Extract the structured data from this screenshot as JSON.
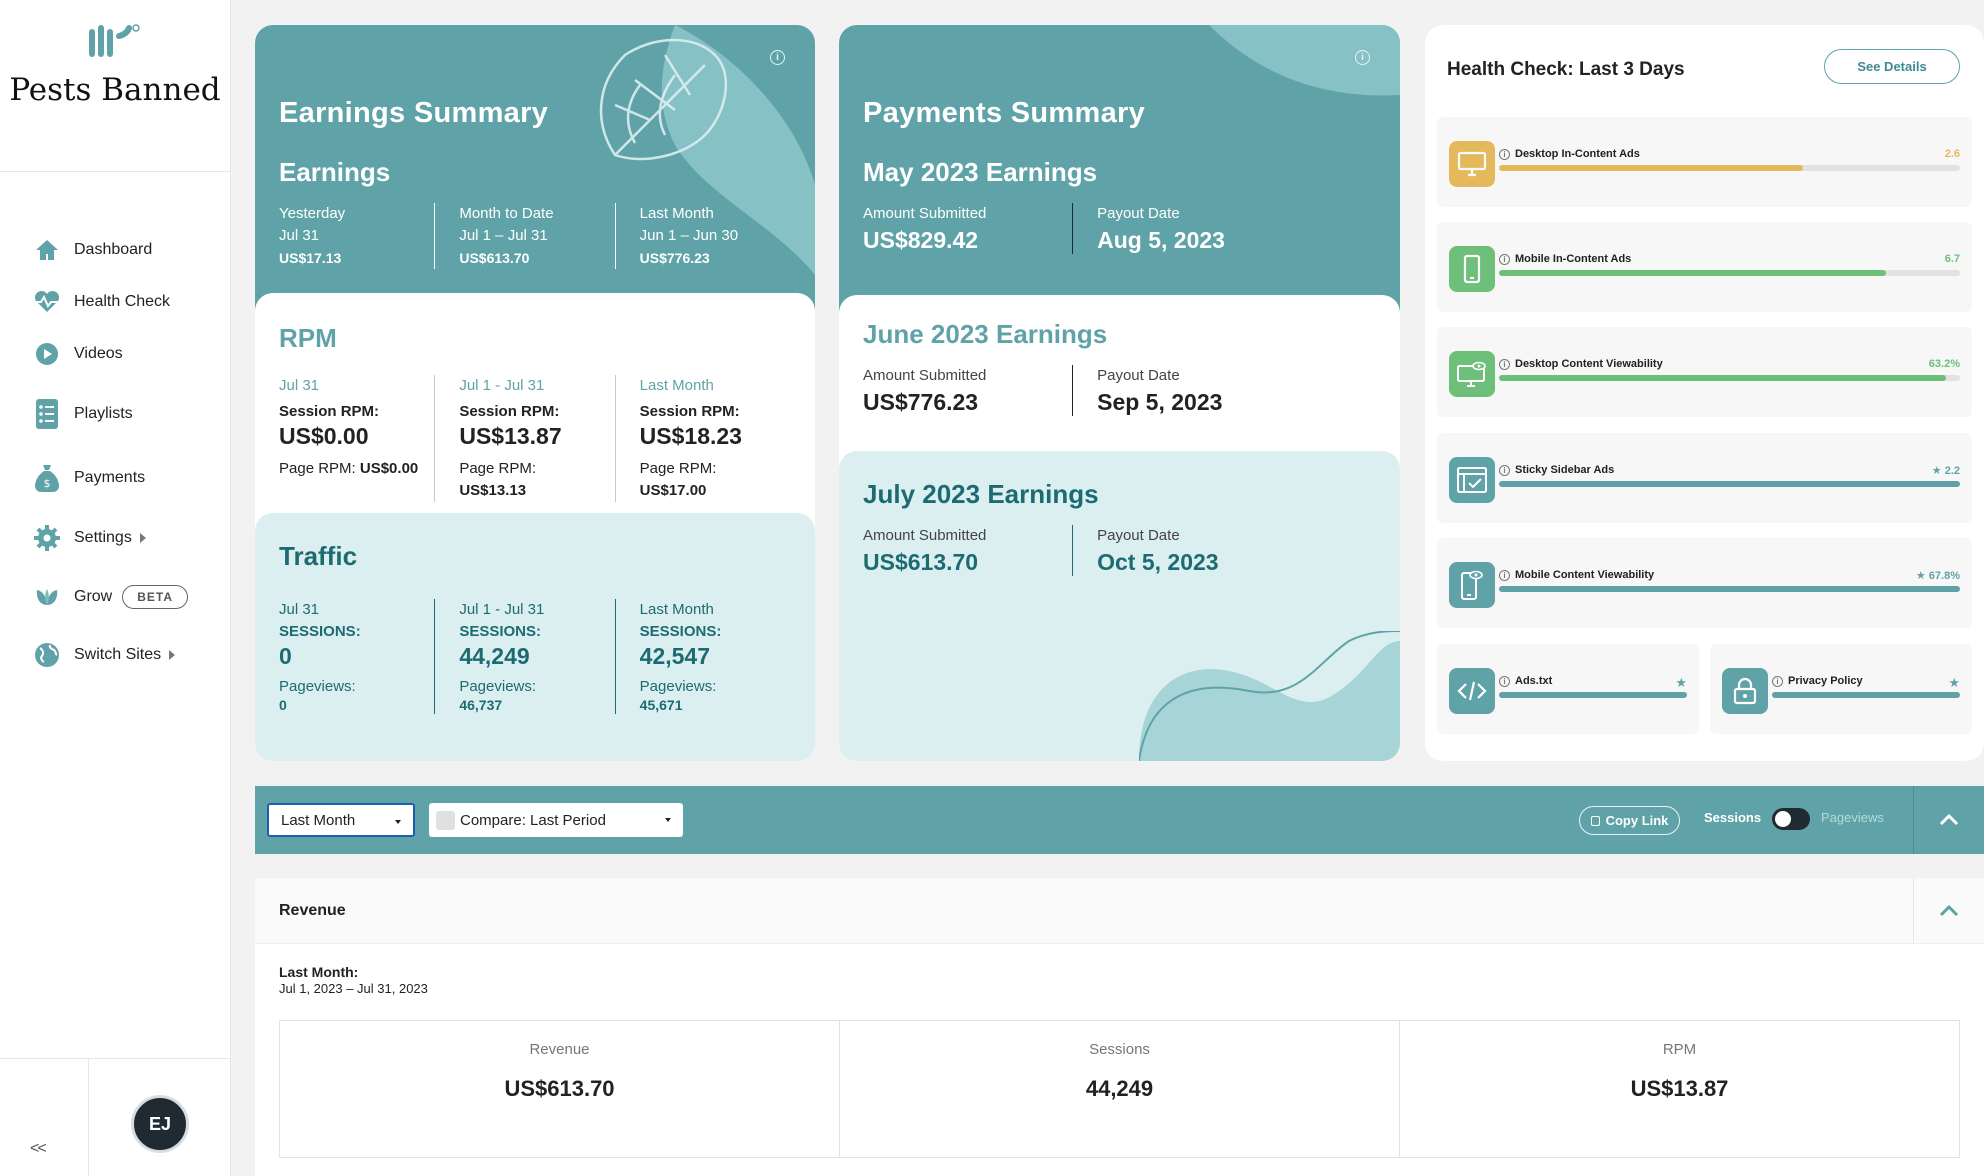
{
  "colors": {
    "teal": "#5fa3a8",
    "dark_teal": "#1d6b72",
    "light_teal": "#dceff0",
    "yellow": "#e6b85c",
    "green": "#6dbf7a"
  },
  "sidebar": {
    "site_name": "Pests Banned",
    "nav": [
      {
        "label": "Dashboard",
        "icon": "home-icon"
      },
      {
        "label": "Health Check",
        "icon": "heartbeat-icon"
      },
      {
        "label": "Videos",
        "icon": "play-icon"
      },
      {
        "label": "Playlists",
        "icon": "list-icon"
      },
      {
        "label": "Payments",
        "icon": "money-bag-icon"
      },
      {
        "label": "Settings",
        "icon": "gear-icon"
      },
      {
        "label": "Grow",
        "icon": "leaf-icon",
        "badge": "BETA"
      },
      {
        "label": "Switch Sites",
        "icon": "globe-icon"
      }
    ],
    "collapse_label": "<<",
    "avatar_label": "EJ"
  },
  "earnings": {
    "title": "Earnings Summary",
    "subtitle": "Earnings",
    "cols": [
      {
        "label": "Yesterday",
        "range": "Jul 31",
        "value": "US$17.13"
      },
      {
        "label": "Month to Date",
        "range": "Jul 1 – Jul 31",
        "value": "US$613.70"
      },
      {
        "label": "Last Month",
        "range": "Jun 1 – Jun 30",
        "value": "US$776.23"
      }
    ]
  },
  "rpm": {
    "title": "RPM",
    "cols": [
      {
        "range": "Jul 31",
        "session_label": "Session RPM:",
        "session_value": "US$0.00",
        "page_label": "Page RPM:",
        "page_value": "US$0.00"
      },
      {
        "range": "Jul 1 - Jul 31",
        "session_label": "Session RPM:",
        "session_value": "US$13.87",
        "page_label": "Page RPM:",
        "page_value": "US$13.13"
      },
      {
        "range": "Last Month",
        "session_label": "Session RPM:",
        "session_value": "US$18.23",
        "page_label": "Page RPM:",
        "page_value": "US$17.00"
      }
    ]
  },
  "traffic": {
    "title": "Traffic",
    "cols": [
      {
        "range": "Jul 31",
        "sessions_label": "SESSIONS:",
        "sessions": "0",
        "pv_label": "Pageviews:",
        "pageviews": "0"
      },
      {
        "range": "Jul 1 - Jul 31",
        "sessions_label": "SESSIONS:",
        "sessions": "44,249",
        "pv_label": "Pageviews:",
        "pageviews": "46,737"
      },
      {
        "range": "Last Month",
        "sessions_label": "SESSIONS:",
        "sessions": "42,547",
        "pv_label": "Pageviews:",
        "pageviews": "45,671"
      }
    ]
  },
  "payments": {
    "title": "Payments Summary",
    "blocks": [
      {
        "title": "May 2023 Earnings",
        "amount_label": "Amount Submitted",
        "amount": "US$829.42",
        "date_label": "Payout Date",
        "date": "Aug 5, 2023"
      },
      {
        "title": "June 2023 Earnings",
        "amount_label": "Amount Submitted",
        "amount": "US$776.23",
        "date_label": "Payout Date",
        "date": "Sep 5, 2023"
      },
      {
        "title": "July 2023 Earnings",
        "amount_label": "Amount Submitted",
        "amount": "US$613.70",
        "date_label": "Payout Date",
        "date": "Oct 5, 2023"
      }
    ]
  },
  "health": {
    "title": "Health Check: Last 3 Days",
    "see_details": "See Details",
    "items": [
      {
        "name": "Desktop In-Content Ads",
        "value": "2.6",
        "fill": 0.66,
        "color": "#e6b85c",
        "icon": "desktop-icon",
        "star": false
      },
      {
        "name": "Mobile In-Content Ads",
        "value": "6.7",
        "fill": 0.84,
        "color": "#6dbf7a",
        "icon": "mobile-icon",
        "star": false
      },
      {
        "name": "Desktop Content Viewability",
        "value": "63.2%",
        "fill": 0.97,
        "color": "#6dbf7a",
        "icon": "desktop-eye-icon",
        "star": false
      },
      {
        "name": "Sticky Sidebar Ads",
        "value": "2.2",
        "fill": 1.0,
        "color": "#5fa3a8",
        "icon": "sidebar-check-icon",
        "star": true
      },
      {
        "name": "Mobile Content Viewability",
        "value": "67.8%",
        "fill": 1.0,
        "color": "#5fa3a8",
        "icon": "mobile-eye-icon",
        "star": true
      }
    ],
    "small_items": [
      {
        "name": "Ads.txt",
        "fill": 1.0,
        "icon": "code-icon"
      },
      {
        "name": "Privacy Policy",
        "fill": 1.0,
        "icon": "lock-icon"
      }
    ]
  },
  "filters": {
    "period": "Last Month",
    "compare": "Compare: Last Period",
    "copy_link": "Copy Link",
    "toggle_left": "Sessions",
    "toggle_right": "Pageviews"
  },
  "revenue": {
    "title": "Revenue",
    "period_label": "Last Month:",
    "period_range": "Jul 1, 2023 – Jul 31, 2023",
    "stats": [
      {
        "label": "Revenue",
        "value": "US$613.70"
      },
      {
        "label": "Sessions",
        "value": "44,249"
      },
      {
        "label": "RPM",
        "value": "US$13.87"
      }
    ]
  }
}
